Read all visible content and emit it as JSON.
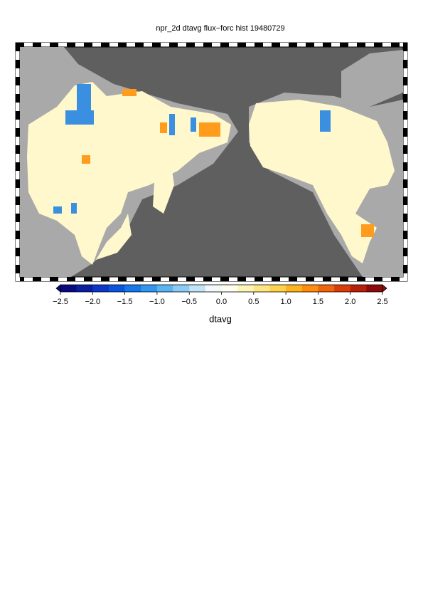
{
  "title": "npr_2d dtavg flux−forc hist 19480729",
  "colorbar": {
    "label": "dtavg",
    "range": [
      -2.5,
      2.5
    ],
    "ticks": [
      {
        "value": -2.5,
        "label": "−2.5"
      },
      {
        "value": -2,
        "label": "−2.0"
      },
      {
        "value": -1.5,
        "label": "−1.5"
      },
      {
        "value": -1,
        "label": "−1.0"
      },
      {
        "value": -0.5,
        "label": "−0.5"
      },
      {
        "value": 0,
        "label": "0.0"
      },
      0.5,
      {
        "value": 1,
        "label": "1.0"
      },
      1.5,
      {
        "value": 2,
        "label": "2.0"
      },
      2.5
    ],
    "colors": [
      "#0a0a80",
      "#0a1ea0",
      "#0b37c8",
      "#0a55e0",
      "#1478ec",
      "#3296f0",
      "#5ab4f2",
      "#8ccbf5",
      "#c2e4f7",
      "#f2f8fb",
      "#fffff2",
      "#fff5b4",
      "#ffe682",
      "#ffd24b",
      "#ffb419",
      "#ff8c0a",
      "#f0640a",
      "#dc3c0a",
      "#b91e0a",
      "#8c0a0a"
    ]
  }
}
